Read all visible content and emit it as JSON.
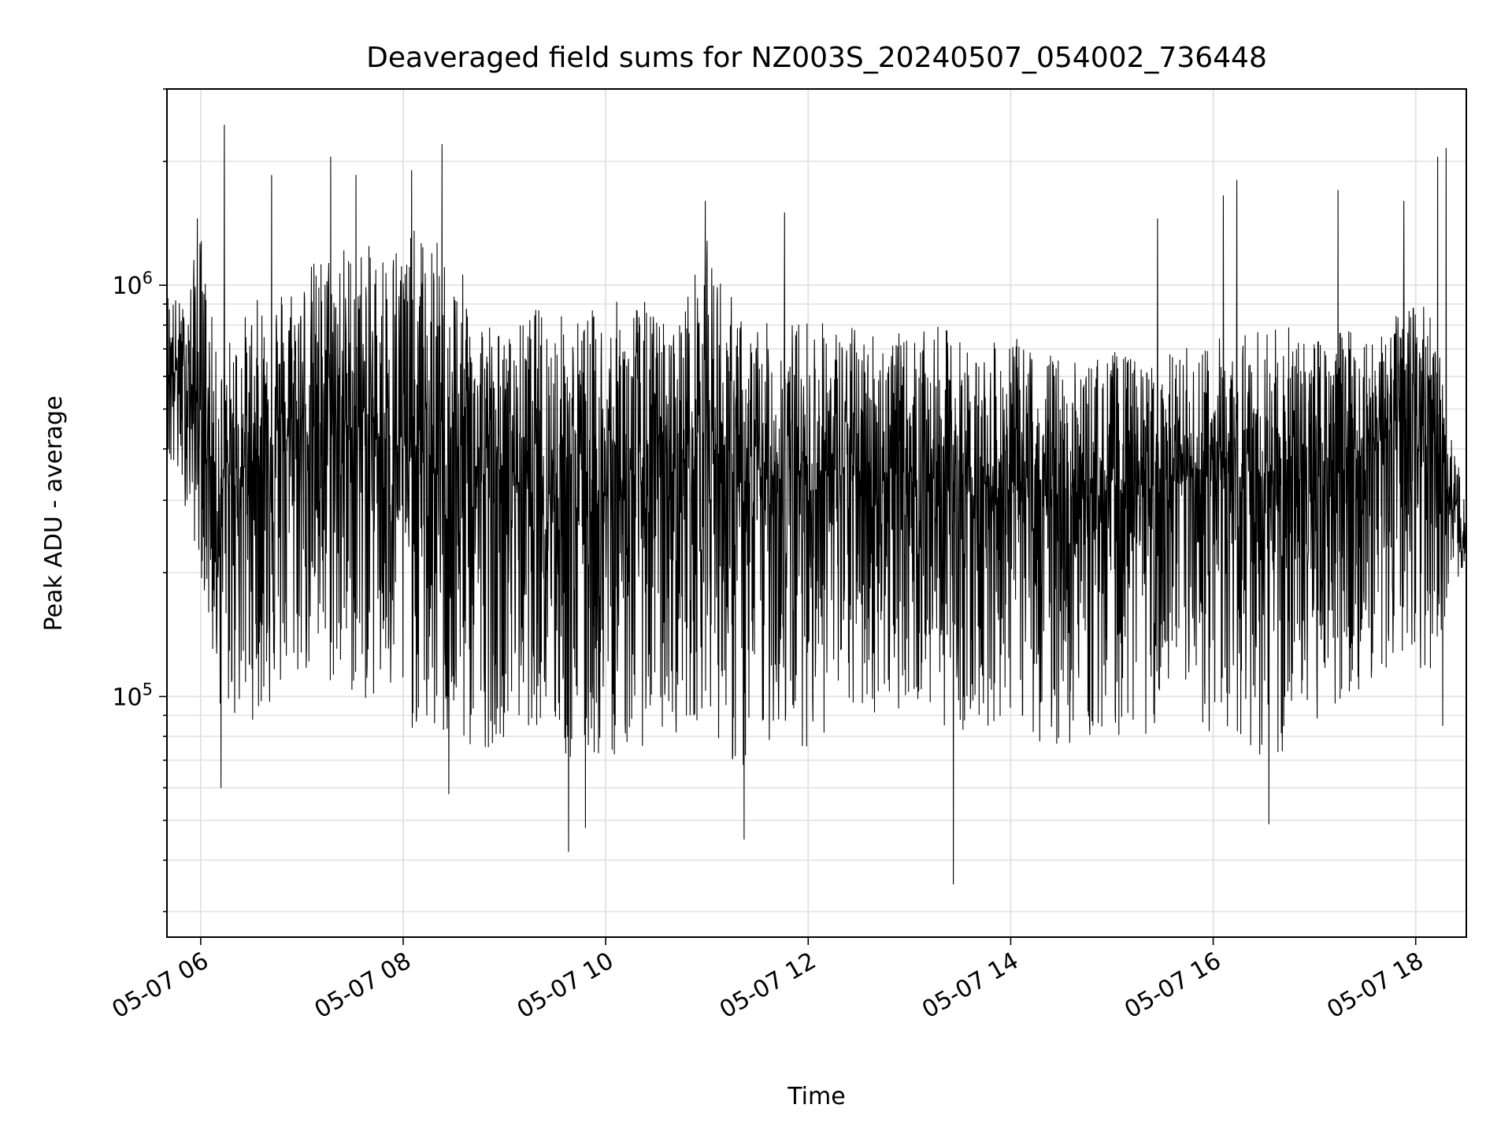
{
  "chart_data": {
    "type": "line",
    "title": "Deaveraged field sums for NZ003S_20240507_054002_736448",
    "xlabel": "Time",
    "ylabel": "Peak ADU - average",
    "y_scale": "log",
    "grid": true,
    "legend": "none",
    "line_color": "#000000",
    "xlim": [
      "2024-05-07 05:40",
      "2024-05-07 18:30"
    ],
    "ylim": [
      26000,
      3000000
    ],
    "x_ticks": [
      {
        "value": "2024-05-07 06:00",
        "label": "05-07 06"
      },
      {
        "value": "2024-05-07 08:00",
        "label": "05-07 08"
      },
      {
        "value": "2024-05-07 10:00",
        "label": "05-07 10"
      },
      {
        "value": "2024-05-07 12:00",
        "label": "05-07 12"
      },
      {
        "value": "2024-05-07 14:00",
        "label": "05-07 14"
      },
      {
        "value": "2024-05-07 16:00",
        "label": "05-07 16"
      },
      {
        "value": "2024-05-07 18:00",
        "label": "05-07 18"
      }
    ],
    "y_ticks": [
      {
        "value": 100000,
        "base": "10",
        "exp": "5"
      },
      {
        "value": 1000000,
        "base": "10",
        "exp": "6"
      }
    ],
    "series": [
      {
        "x": [
          "2024-05-07 05:40",
          "2024-05-07 05:50",
          "2024-05-07 06:00",
          "2024-05-07 06:10",
          "2024-05-07 06:20",
          "2024-05-07 06:40",
          "2024-05-07 07:00",
          "2024-05-07 07:20",
          "2024-05-07 07:40",
          "2024-05-07 08:00",
          "2024-05-07 08:20",
          "2024-05-07 08:40",
          "2024-05-07 09:00",
          "2024-05-07 09:20",
          "2024-05-07 09:40",
          "2024-05-07 10:00",
          "2024-05-07 10:20",
          "2024-05-07 10:40",
          "2024-05-07 11:00",
          "2024-05-07 11:20",
          "2024-05-07 11:40",
          "2024-05-07 12:00",
          "2024-05-07 12:20",
          "2024-05-07 12:40",
          "2024-05-07 13:00",
          "2024-05-07 13:20",
          "2024-05-07 13:40",
          "2024-05-07 14:00",
          "2024-05-07 14:20",
          "2024-05-07 14:40",
          "2024-05-07 15:00",
          "2024-05-07 15:20",
          "2024-05-07 15:40",
          "2024-05-07 16:00",
          "2024-05-07 16:20",
          "2024-05-07 16:40",
          "2024-05-07 17:00",
          "2024-05-07 17:20",
          "2024-05-07 17:40",
          "2024-05-07 18:00",
          "2024-05-07 18:10",
          "2024-05-07 18:20",
          "2024-05-07 18:30"
        ],
        "low": [
          350000,
          300000,
          200000,
          95000,
          85000,
          90000,
          110000,
          100000,
          95000,
          85000,
          75000,
          70000,
          80000,
          85000,
          65000,
          70000,
          75000,
          80000,
          90000,
          60000,
          80000,
          75000,
          85000,
          90000,
          95000,
          85000,
          80000,
          90000,
          75000,
          75000,
          80000,
          80000,
          85000,
          80000,
          75000,
          65000,
          85000,
          100000,
          110000,
          120000,
          110000,
          180000,
          200000
        ],
        "high": [
          1000000,
          900000,
          1400000,
          650000,
          800000,
          1000000,
          1100000,
          1300000,
          1250000,
          1400000,
          1300000,
          1000000,
          750000,
          900000,
          850000,
          900000,
          950000,
          800000,
          1300000,
          850000,
          800000,
          850000,
          800000,
          800000,
          750000,
          800000,
          700000,
          750000,
          700000,
          650000,
          700000,
          650000,
          700000,
          750000,
          800000,
          800000,
          750000,
          800000,
          800000,
          900000,
          900000,
          450000,
          300000
        ],
        "typical": [
          650000,
          600000,
          500000,
          300000,
          350000,
          400000,
          450000,
          450000,
          450000,
          400000,
          350000,
          350000,
          350000,
          350000,
          300000,
          300000,
          330000,
          350000,
          450000,
          300000,
          350000,
          350000,
          350000,
          350000,
          350000,
          330000,
          320000,
          330000,
          300000,
          300000,
          320000,
          320000,
          330000,
          350000,
          350000,
          320000,
          350000,
          380000,
          420000,
          480000,
          500000,
          300000,
          230000
        ],
        "spikes": [
          {
            "x": "2024-05-07 05:58",
            "y": 1450000
          },
          {
            "x": "2024-05-07 06:12",
            "y": 60000
          },
          {
            "x": "2024-05-07 06:14",
            "y": 2450000
          },
          {
            "x": "2024-05-07 06:42",
            "y": 1850000
          },
          {
            "x": "2024-05-07 07:17",
            "y": 2050000
          },
          {
            "x": "2024-05-07 07:32",
            "y": 1850000
          },
          {
            "x": "2024-05-07 08:05",
            "y": 1900000
          },
          {
            "x": "2024-05-07 08:23",
            "y": 2200000
          },
          {
            "x": "2024-05-07 08:27",
            "y": 58000
          },
          {
            "x": "2024-05-07 09:38",
            "y": 42000
          },
          {
            "x": "2024-05-07 09:48",
            "y": 48000
          },
          {
            "x": "2024-05-07 10:59",
            "y": 1600000
          },
          {
            "x": "2024-05-07 11:22",
            "y": 45000
          },
          {
            "x": "2024-05-07 11:46",
            "y": 1500000
          },
          {
            "x": "2024-05-07 13:26",
            "y": 35000
          },
          {
            "x": "2024-05-07 15:27",
            "y": 1450000
          },
          {
            "x": "2024-05-07 16:06",
            "y": 1650000
          },
          {
            "x": "2024-05-07 16:14",
            "y": 1800000
          },
          {
            "x": "2024-05-07 16:33",
            "y": 49000
          },
          {
            "x": "2024-05-07 17:14",
            "y": 1700000
          },
          {
            "x": "2024-05-07 17:53",
            "y": 1600000
          },
          {
            "x": "2024-05-07 18:13",
            "y": 2050000
          },
          {
            "x": "2024-05-07 18:16",
            "y": 85000
          },
          {
            "x": "2024-05-07 18:18",
            "y": 2150000
          }
        ]
      }
    ]
  }
}
